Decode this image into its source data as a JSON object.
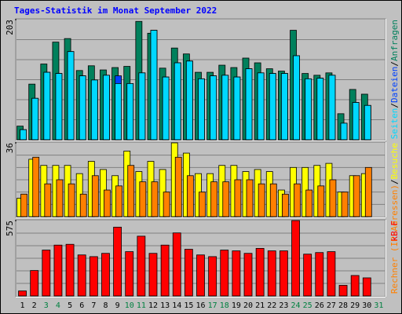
{
  "legend_separator": "/",
  "chart_data": [
    {
      "type": "bar",
      "title": "Tages-Statistik im Monat September 2022",
      "ylim": [
        0,
        203
      ],
      "yticks": [
        203
      ],
      "series": [
        {
          "name": "Anfragen",
          "color": "#00805C",
          "values": [
            23,
            94,
            128,
            165,
            171,
            117,
            125,
            118,
            122,
            124,
            200,
            180,
            121,
            155,
            145,
            114,
            114,
            126,
            122,
            138,
            130,
            120,
            116,
            185,
            112,
            109,
            113,
            44,
            85,
            77,
            null
          ]
        },
        {
          "name": "Dateien",
          "color": "#0040FF",
          "values": [
            17,
            70,
            114,
            112,
            149,
            108,
            101,
            109,
            108,
            95,
            113,
            185,
            106,
            130,
            133,
            103,
            108,
            109,
            106,
            120,
            113,
            112,
            112,
            142,
            103,
            104,
            109,
            28,
            63,
            58,
            null
          ]
        },
        {
          "name": "Seiten",
          "color": "#00D8FF",
          "values": [
            17,
            70,
            114,
            112,
            149,
            108,
            101,
            109,
            95,
            95,
            113,
            185,
            106,
            130,
            133,
            103,
            108,
            109,
            106,
            120,
            113,
            112,
            112,
            142,
            103,
            104,
            109,
            28,
            63,
            58,
            null
          ]
        }
      ]
    },
    {
      "type": "bar",
      "ylim": [
        0,
        36
      ],
      "yticks": [
        36
      ],
      "series": [
        {
          "name": "Besuche",
          "color": "#FFFF00",
          "values": [
            9,
            28,
            25,
            25,
            25,
            21,
            27,
            23,
            20,
            32,
            22,
            27,
            23,
            36,
            31,
            21,
            21,
            25,
            25,
            22,
            23,
            22,
            13,
            24,
            24,
            25,
            26,
            12,
            20,
            21,
            null
          ]
        },
        {
          "name": "Rechner (IP-Adressen)",
          "color": "#FF8000",
          "values": [
            11,
            29,
            16,
            18,
            16,
            11,
            20,
            13,
            15,
            25,
            17,
            17,
            12,
            29,
            20,
            12,
            17,
            17,
            18,
            18,
            16,
            16,
            11,
            16,
            13,
            15,
            18,
            12,
            20,
            24,
            null
          ]
        }
      ]
    },
    {
      "type": "bar",
      "ylim": [
        0,
        575
      ],
      "yticks": [
        575
      ],
      "categories": [
        1,
        2,
        3,
        4,
        5,
        6,
        7,
        8,
        9,
        10,
        11,
        12,
        13,
        14,
        15,
        16,
        17,
        18,
        19,
        20,
        21,
        22,
        23,
        24,
        25,
        26,
        27,
        28,
        29,
        30,
        31
      ],
      "category_colors": [
        "#000000",
        "#000000",
        "#008040",
        "#008040",
        "#000000",
        "#000000",
        "#000000",
        "#000000",
        "#000000",
        "#008040",
        "#008040",
        "#000000",
        "#000000",
        "#000000",
        "#000000",
        "#000000",
        "#008040",
        "#008040",
        "#000000",
        "#000000",
        "#000000",
        "#000000",
        "#000000",
        "#008040",
        "#008040",
        "#000000",
        "#000000",
        "#000000",
        "#000000",
        "#000000",
        "#008040"
      ],
      "series": [
        {
          "name": "kB F",
          "color": "#FF0000",
          "values": [
            38,
            194,
            350,
            388,
            394,
            313,
            300,
            325,
            525,
            338,
            456,
            325,
            388,
            481,
            356,
            313,
            300,
            350,
            344,
            325,
            363,
            344,
            344,
            575,
            319,
            331,
            338,
            81,
            156,
            138,
            null
          ]
        }
      ]
    }
  ]
}
